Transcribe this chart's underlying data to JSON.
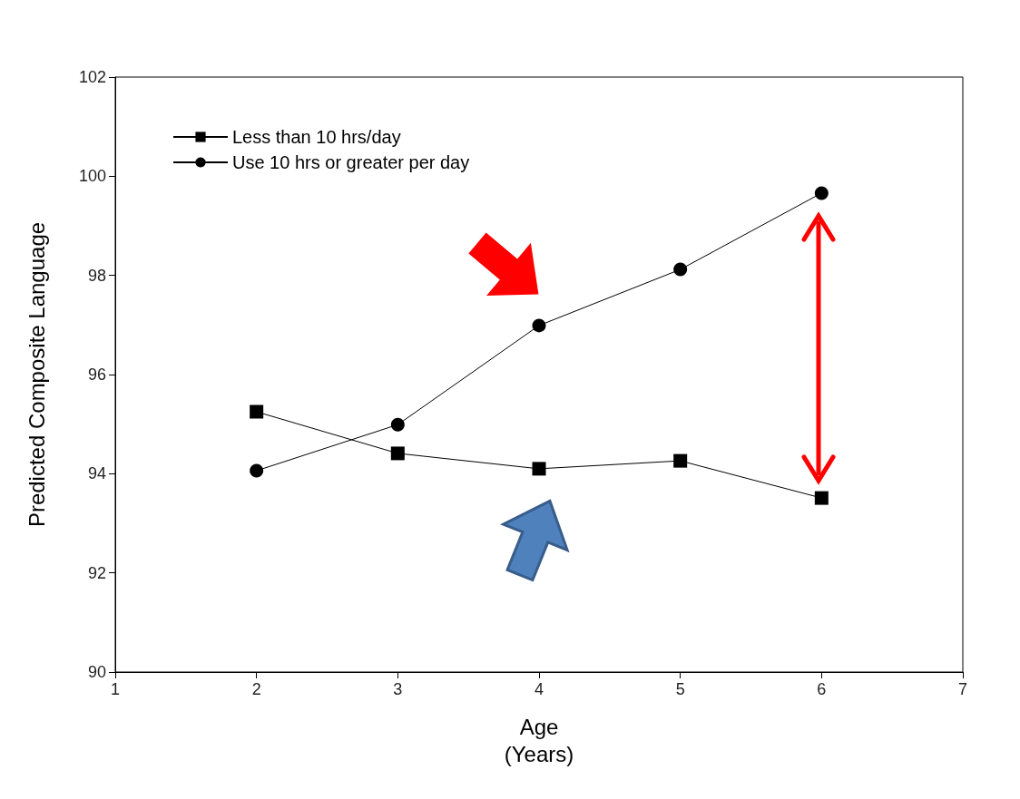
{
  "chart_data": {
    "type": "line",
    "xlabel": "Age\n(Years)",
    "ylabel": "Predicted Composite Language",
    "xlim": [
      1,
      7
    ],
    "xticks": [
      1,
      2,
      3,
      4,
      5,
      6,
      7
    ],
    "ylim": [
      90,
      102
    ],
    "yticks": [
      90,
      92,
      94,
      96,
      98,
      100,
      102
    ],
    "x": [
      2,
      3,
      4,
      5,
      6
    ],
    "series": [
      {
        "name": "Less than 10 hrs/day",
        "color": "#000000",
        "marker": "square",
        "values": [
          95.25,
          94.41,
          94.1,
          94.26,
          93.51
        ]
      },
      {
        "name": "Use 10 hrs or greater per day",
        "color": "#000000",
        "marker": "circle",
        "values": [
          94.06,
          94.99,
          96.99,
          98.12,
          99.66
        ]
      }
    ],
    "grid": false,
    "legend": "top left",
    "line_style": "solid"
  }
}
